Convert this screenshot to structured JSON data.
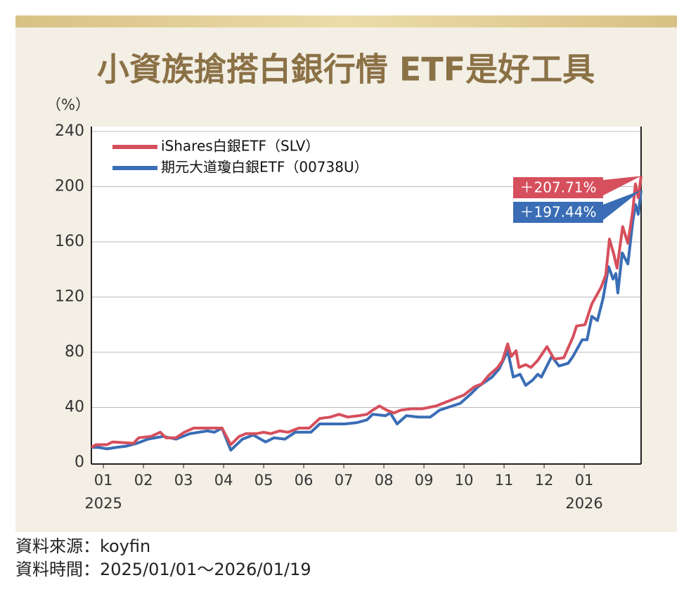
{
  "chart_data": {
    "type": "line",
    "title": "小資族搶搭白銀行情 ETF是好工具",
    "y_unit_label": "（%）",
    "source": "資料來源：koyfin",
    "period": "資料時間：2025/01/01～2026/01/19",
    "ylim": [
      0,
      240
    ],
    "yticks": [
      0,
      40,
      80,
      120,
      160,
      200,
      240
    ],
    "xlim": [
      -0.3,
      13.42
    ],
    "xticks": [
      {
        "value": 0,
        "label": "01"
      },
      {
        "value": 1,
        "label": "02"
      },
      {
        "value": 2,
        "label": "03"
      },
      {
        "value": 3,
        "label": "04"
      },
      {
        "value": 4,
        "label": "05"
      },
      {
        "value": 5,
        "label": "06"
      },
      {
        "value": 6,
        "label": "07"
      },
      {
        "value": 7,
        "label": "08"
      },
      {
        "value": 8,
        "label": "09"
      },
      {
        "value": 9,
        "label": "10"
      },
      {
        "value": 10,
        "label": "11"
      },
      {
        "value": 11,
        "label": "12"
      },
      {
        "value": 12,
        "label": "01"
      }
    ],
    "year_labels": [
      {
        "value": 0,
        "label": "2025"
      },
      {
        "value": 12,
        "label": "2026"
      }
    ],
    "grid": true,
    "series": [
      {
        "name": "iShares白銀ETF（SLV）",
        "color": "#d64f5c",
        "end_label": "＋207.71%",
        "x": [
          -0.3,
          -0.18,
          0.09,
          0.23,
          0.75,
          0.88,
          1.19,
          1.42,
          1.56,
          1.81,
          2.02,
          2.25,
          2.51,
          2.77,
          2.96,
          3.18,
          3.39,
          3.56,
          3.82,
          4.0,
          4.18,
          4.4,
          4.61,
          4.88,
          5.14,
          5.4,
          5.67,
          5.88,
          6.1,
          6.37,
          6.58,
          6.72,
          6.89,
          7.07,
          7.25,
          7.42,
          7.68,
          7.95,
          8.3,
          8.65,
          9.0,
          9.26,
          9.44,
          9.61,
          9.84,
          9.96,
          10.09,
          10.18,
          10.3,
          10.37,
          10.54,
          10.67,
          10.84,
          11.07,
          11.25,
          11.49,
          11.72,
          11.81,
          12.02,
          12.19,
          12.42,
          12.54,
          12.63,
          12.74,
          12.82,
          12.96,
          13.09,
          13.21,
          13.28,
          13.35,
          13.42
        ],
        "values": [
          11,
          13,
          13,
          15,
          14,
          18,
          19,
          22,
          18,
          18,
          22,
          25,
          25,
          25,
          25,
          13,
          19,
          21,
          21,
          22,
          21,
          23,
          22,
          25,
          25,
          32,
          33,
          35,
          33,
          34,
          35,
          38,
          41,
          38,
          36,
          38,
          39,
          39,
          41,
          45,
          49,
          55,
          57,
          63,
          69,
          74,
          86,
          77,
          81,
          69,
          71,
          69,
          74,
          84,
          75,
          76,
          91,
          99,
          100,
          115,
          127,
          136,
          162,
          151,
          141,
          171,
          159,
          182,
          202,
          192,
          207.71
        ]
      },
      {
        "name": "期元大道瓊白銀ETF（00738U）",
        "color": "#3a6db5",
        "end_label": "＋197.44%",
        "x": [
          -0.3,
          -0.12,
          0.09,
          0.32,
          0.58,
          0.84,
          1.11,
          1.49,
          1.81,
          2.16,
          2.6,
          2.77,
          2.96,
          3.18,
          3.47,
          3.74,
          4.05,
          4.26,
          4.53,
          4.79,
          5.18,
          5.4,
          6.02,
          6.33,
          6.58,
          6.72,
          7.04,
          7.16,
          7.33,
          7.56,
          7.86,
          8.16,
          8.39,
          8.91,
          9.18,
          9.35,
          9.7,
          9.88,
          10.09,
          10.23,
          10.4,
          10.54,
          10.72,
          10.84,
          10.93,
          11.19,
          11.37,
          11.6,
          11.72,
          11.95,
          12.07,
          12.19,
          12.33,
          12.47,
          12.61,
          12.72,
          12.79,
          12.84,
          12.95,
          13.09,
          13.21,
          13.28,
          13.35,
          13.42
        ],
        "values": [
          11,
          11,
          10,
          11,
          12,
          14,
          17,
          19,
          17,
          21,
          23,
          22,
          25,
          9,
          17,
          20,
          15,
          18,
          17,
          22,
          22,
          28,
          28,
          29,
          31,
          35,
          34,
          36,
          28,
          34,
          33,
          33,
          38,
          43,
          50,
          55,
          62,
          68,
          81,
          62,
          64,
          56,
          60,
          64,
          62,
          77,
          70,
          72,
          77,
          89,
          89,
          106,
          103,
          119,
          142,
          133,
          137,
          123,
          152,
          144,
          174,
          187,
          180,
          197.44
        ]
      }
    ]
  }
}
